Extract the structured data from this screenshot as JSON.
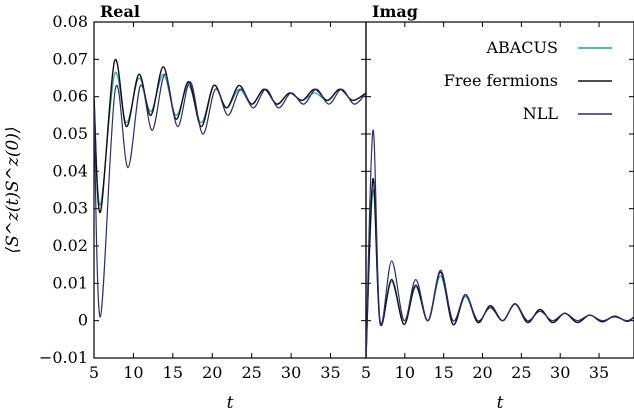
{
  "chart_data": [
    {
      "type": "line",
      "title": "Real",
      "ylabel": "⟨S^z(t)S^z(0)⟩",
      "xlabel": "t",
      "xlim": [
        5,
        39.5
      ],
      "ylim": [
        -0.01,
        0.08
      ],
      "xticks": [
        "5",
        "10",
        "15",
        "20",
        "25",
        "30",
        "35"
      ],
      "xtick_values": [
        5,
        10,
        15,
        20,
        25,
        30,
        35
      ],
      "yticks": [
        "−0.01",
        "0",
        "0.01",
        "0.02",
        "0.03",
        "0.04",
        "0.05",
        "0.06",
        "0.07",
        "0.08"
      ],
      "ytick_values": [
        -0.01,
        0,
        0.01,
        0.02,
        0.03,
        0.04,
        0.05,
        0.06,
        0.07,
        0.08
      ],
      "series": [
        {
          "name": "ABACUS",
          "color": "#2a9d9f",
          "x": [
            5,
            5.8,
            7.6,
            9.1,
            10.7,
            12.2,
            13.8,
            15.4,
            17,
            18.6,
            20.2,
            21.8,
            23.4,
            25,
            26.6,
            28.2,
            29.8,
            31.4,
            33,
            34.6,
            36.2,
            37.8,
            39.5
          ],
          "y": [
            0.06,
            0.031,
            0.066,
            0.053,
            0.065,
            0.056,
            0.066,
            0.055,
            0.063,
            0.053,
            0.063,
            0.057,
            0.062,
            0.058,
            0.062,
            0.058,
            0.061,
            0.059,
            0.061,
            0.059,
            0.062,
            0.059,
            0.061
          ]
        },
        {
          "name": "Free fermions",
          "color": "#111111",
          "x": [
            5,
            5.8,
            7.6,
            9.1,
            10.7,
            12.2,
            13.8,
            15.4,
            17,
            18.6,
            20.2,
            21.8,
            23.4,
            25,
            26.6,
            28.2,
            29.8,
            31.4,
            33,
            34.6,
            36.2,
            37.8,
            39.5
          ],
          "y": [
            0.06,
            0.029,
            0.0695,
            0.052,
            0.066,
            0.055,
            0.068,
            0.054,
            0.064,
            0.052,
            0.063,
            0.057,
            0.063,
            0.058,
            0.062,
            0.058,
            0.061,
            0.059,
            0.062,
            0.059,
            0.062,
            0.059,
            0.061
          ]
        },
        {
          "name": "NLL",
          "color": "#2e2a7a",
          "x": [
            5,
            5.8,
            7.7,
            9.3,
            10.9,
            12.4,
            14,
            15.6,
            17.2,
            18.8,
            20.4,
            22,
            23.6,
            25.2,
            26.8,
            28.4,
            30,
            31.6,
            33.2,
            34.8,
            36.4,
            38,
            39.5
          ],
          "y": [
            0.057,
            0.001,
            0.062,
            0.041,
            0.063,
            0.051,
            0.066,
            0.052,
            0.064,
            0.05,
            0.062,
            0.055,
            0.062,
            0.057,
            0.062,
            0.057,
            0.061,
            0.058,
            0.062,
            0.058,
            0.062,
            0.058,
            0.061
          ]
        }
      ]
    },
    {
      "type": "line",
      "title": "Imag",
      "xlabel": "t",
      "xlim": [
        5,
        39.5
      ],
      "ylim": [
        -0.01,
        0.08
      ],
      "xticks": [
        "5",
        "10",
        "15",
        "20",
        "25",
        "30",
        "35"
      ],
      "xtick_values": [
        5,
        10,
        15,
        20,
        25,
        30,
        35
      ],
      "legend_position": "top-right",
      "series": [
        {
          "name": "ABACUS",
          "color": "#2a9d9f",
          "x": [
            5,
            5.9,
            6.8,
            8.3,
            9.9,
            11.4,
            13,
            14.6,
            16.2,
            17.8,
            19.4,
            21,
            22.6,
            24.2,
            25.8,
            27.4,
            29,
            30.6,
            32.2,
            33.8,
            35.4,
            37,
            38.6,
            39.5
          ],
          "y": [
            -0.01,
            0.035,
            0.0,
            0.0105,
            -0.001,
            0.009,
            0.0,
            0.012,
            -0.001,
            0.0065,
            -0.0005,
            0.004,
            0.0,
            0.0045,
            -0.0005,
            0.003,
            -0.0005,
            0.002,
            -0.0005,
            0.0015,
            -0.0003,
            0.0012,
            -0.0002,
            0.001
          ]
        },
        {
          "name": "Free fermions",
          "color": "#111111",
          "x": [
            5,
            5.9,
            6.8,
            8.3,
            9.9,
            11.4,
            13,
            14.6,
            16.2,
            17.8,
            19.4,
            21,
            22.6,
            24.2,
            25.8,
            27.4,
            29,
            30.6,
            32.2,
            33.8,
            35.4,
            37,
            38.6,
            39.5
          ],
          "y": [
            -0.01,
            0.038,
            -0.0005,
            0.011,
            -0.001,
            0.0095,
            0.0,
            0.013,
            -0.001,
            0.007,
            -0.0005,
            0.004,
            0.0,
            0.0045,
            -0.0005,
            0.003,
            -0.0005,
            0.002,
            -0.0005,
            0.0015,
            -0.0003,
            0.0012,
            -0.0002,
            0.001
          ]
        },
        {
          "name": "NLL",
          "color": "#2e2a7a",
          "x": [
            5,
            5.9,
            6.8,
            8.3,
            9.9,
            11.4,
            13,
            14.6,
            16.2,
            17.8,
            19.4,
            21,
            22.6,
            24.2,
            25.8,
            27.4,
            29,
            30.6,
            32.2,
            33.8,
            35.4,
            37,
            38.6,
            39.5
          ],
          "y": [
            -0.01,
            0.051,
            0.0,
            0.016,
            0.0,
            0.011,
            0.0,
            0.0135,
            0.0,
            0.007,
            0.0,
            0.0035,
            0.0,
            0.0045,
            0.0,
            0.0025,
            0.0,
            0.002,
            0.0,
            0.0015,
            0.0,
            0.001,
            0.0,
            0.001
          ]
        }
      ]
    }
  ]
}
